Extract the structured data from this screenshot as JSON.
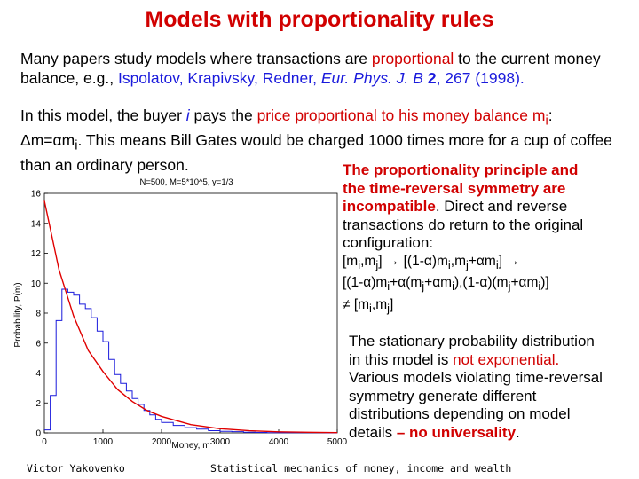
{
  "title": "Models with proportionality rules",
  "intro": {
    "part1": "Many papers study models where transactions are ",
    "highlight": "proportional",
    "part2": " to the current money balance, e.g., ",
    "citation_authors": "Ispolatov, Krapivsky, Redner, ",
    "citation_journal": "Eur. Phys. J. B",
    "citation_volume": " 2",
    "citation_rest": ", 267 (1998)."
  },
  "model": {
    "part1": "In this model, the buyer ",
    "buyer_var": "i",
    "part2": " pays the ",
    "highlight": "price proportional to his money balance m",
    "highlight_sub": "i",
    "part3": ":",
    "formula": "Δm=αm",
    "formula_sub": "i",
    "part4": ".  This means Bill Gates would be charged 1000 times more for a cup of coffee than an ordinary person."
  },
  "incompatibility": {
    "line1_red": "The proportionality principle and",
    "line2_red": "the time-reversal symmetry are",
    "line3_red": "incompatible",
    "line3_rest": ".  Direct and reverse",
    "line4": "transactions do return to the original",
    "line5": "configuration:",
    "f1": "[m",
    "f1_sub_i": "i",
    "f1_mid": ",m",
    "f1_sub_j": "j",
    "f1_end": "] → [(1-α)m",
    "f1b_sub_i": "i",
    "f1b_mid": ",m",
    "f1b_sub_j": "j",
    "f1b_mid2": "+αm",
    "f1b_sub_i2": "i",
    "f1b_end": "] →",
    "f2": "[(1-α)m",
    "f2_sub_i": "i",
    "f2_a": "+α(m",
    "f2_sub_j": "j",
    "f2_b": "+αm",
    "f2_sub_i2": "i",
    "f2_c": "),(1-α)(m",
    "f2_sub_j2": "j",
    "f2_d": "+αm",
    "f2_sub_i3": "i",
    "f2_e": ")]",
    "f3": "≠ [m",
    "f3_sub_i": "i",
    "f3_mid": ",m",
    "f3_sub_j": "j",
    "f3_end": "]"
  },
  "stationary": {
    "line1": "The stationary probability distribution",
    "line2_a": "in this model is ",
    "line2_red": "not exponential.",
    "line3": "Various models violating time-reversal",
    "line4": "symmetry generate different",
    "line5": "distributions depending on model",
    "line6_a": "details ",
    "line6_red": "– no universality",
    "line6_end": "."
  },
  "footer": {
    "author": "Victor Yakovenko",
    "course": "Statistical mechanics of money, income and wealth"
  },
  "colors": {
    "accent_red": "#d10000",
    "citation_blue": "#1a1adc",
    "histogram": "#1a1adc",
    "exponential_fit": "#e00000"
  },
  "chart_data": {
    "type": "line",
    "title": "N=500, M=5*10^5, γ=1/3",
    "xlabel": "Money, m",
    "ylabel": "Probability, P(m)",
    "xlim": [
      0,
      5000
    ],
    "ylim": [
      0,
      16
    ],
    "xticks": [
      "0",
      "1000",
      "2000",
      "3000",
      "4000",
      "5000"
    ],
    "yticks": [
      "0",
      "2",
      "4",
      "6",
      "8",
      "10",
      "12",
      "14",
      "16"
    ],
    "series": [
      {
        "style": "step",
        "x": [
          0,
          100,
          200,
          300,
          400,
          500,
          600,
          700,
          800,
          900,
          1000,
          1100,
          1200,
          1300,
          1400,
          1500,
          1600,
          1700,
          1800,
          1900,
          2000,
          2200,
          2400,
          2600,
          2800,
          3000,
          3200,
          3400,
          3600,
          3800,
          4000,
          4200,
          4400,
          4600,
          4800,
          5000
        ],
        "y": [
          0.2,
          2.5,
          7.5,
          9.6,
          9.4,
          9.2,
          8.6,
          8.3,
          7.7,
          6.8,
          6.1,
          4.9,
          3.9,
          3.3,
          2.8,
          2.3,
          1.9,
          1.5,
          1.2,
          0.9,
          0.7,
          0.5,
          0.35,
          0.25,
          0.15,
          0.1,
          0.08,
          0.05,
          0.03,
          0.02,
          0.02,
          0.01,
          0.01,
          0.01,
          0.0,
          0.0
        ]
      },
      {
        "style": "curve",
        "x": [
          0,
          250,
          500,
          750,
          1000,
          1250,
          1500,
          1750,
          2000,
          2500,
          3000,
          3500,
          4000,
          4500,
          5000
        ],
        "y": [
          15.5,
          10.9,
          7.8,
          5.5,
          4.1,
          2.9,
          2.1,
          1.5,
          1.1,
          0.55,
          0.28,
          0.14,
          0.07,
          0.04,
          0.02
        ]
      }
    ]
  }
}
